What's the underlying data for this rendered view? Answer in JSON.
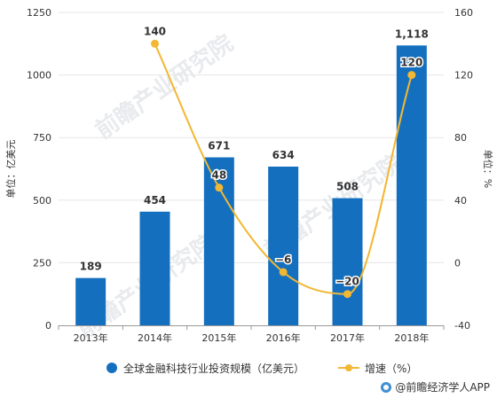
{
  "chart_data": {
    "type": "bar+line",
    "categories": [
      "2013年",
      "2014年",
      "2015年",
      "2016年",
      "2017年",
      "2018年"
    ],
    "series": [
      {
        "name": "全球金融科技行业投资规模（亿美元）",
        "type": "bar",
        "axis": "left",
        "values": [
          189,
          454,
          671,
          634,
          508,
          1118
        ],
        "labels": [
          "189",
          "454",
          "671",
          "634",
          "508",
          "1,118"
        ]
      },
      {
        "name": "增速（%）",
        "type": "line",
        "axis": "right",
        "values": [
          null,
          140,
          48,
          -6,
          -20,
          120
        ],
        "labels": [
          "",
          "140",
          "48",
          "−6",
          "−20",
          "120"
        ]
      }
    ],
    "ylabel_left": "单位：亿美元",
    "ylabel_right": "单位：%",
    "y_left": {
      "min": 0,
      "max": 1250,
      "ticks": [
        0,
        250,
        500,
        750,
        1000,
        1250
      ],
      "tick_labels": [
        "0",
        "250",
        "500",
        "750",
        "1000",
        "1250"
      ]
    },
    "y_right": {
      "min": -40,
      "max": 160,
      "ticks": [
        -40,
        0,
        40,
        80,
        120,
        160
      ],
      "tick_labels": [
        "-40",
        "0",
        "40",
        "80",
        "120",
        "160"
      ]
    },
    "grid": true,
    "legend": "bottom"
  },
  "colors": {
    "bar": "#1470bf",
    "line": "#f2b733"
  },
  "legend": {
    "bar_label": "全球金融科技行业投资规模（亿美元）",
    "line_label": "增速（%）"
  },
  "watermark": "前瞻产业研究院",
  "source": "@前瞻经济学人APP"
}
